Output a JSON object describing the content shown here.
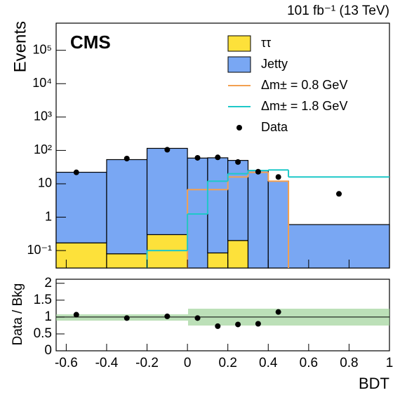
{
  "chart_data": [
    {
      "type": "histogram",
      "title": "CMS",
      "subtitle": "101 fb⁻¹ (13 TeV)",
      "ylabel": "Events",
      "log_y": true,
      "legend": "upper right",
      "bins": [
        -0.65,
        -0.4,
        -0.2,
        0,
        0.1,
        0.2,
        0.3,
        0.4,
        0.5,
        1.0
      ],
      "series": [
        {
          "name": "ττ",
          "color": "#fde13a",
          "style": "stack",
          "values": [
            0.17,
            0.08,
            0.3,
            0,
            0.085,
            0.2,
            0,
            0,
            0
          ]
        },
        {
          "name": "Jetty",
          "color": "#79a7f3",
          "style": "stack",
          "values": [
            22,
            53,
            115,
            59,
            60,
            50,
            25,
            12,
            0.6
          ]
        },
        {
          "name": "Δm± = 0.8 GeV",
          "color": "#f3a050",
          "style": "step",
          "values": [
            null,
            null,
            null,
            6.7,
            6.7,
            16,
            22,
            12,
            null
          ]
        },
        {
          "name": "Δm± = 1.8 GeV",
          "color": "#1ec8c8",
          "style": "step",
          "values": [
            null,
            null,
            0.1,
            1.25,
            12,
            20,
            25,
            26,
            16
          ]
        }
      ],
      "data": {
        "name": "Data",
        "color": "#000000",
        "x": [
          -0.55,
          -0.3,
          -0.1,
          0.05,
          0.15,
          0.25,
          0.35,
          0.45,
          0.75
        ],
        "values": [
          22,
          57,
          105,
          60,
          62,
          45,
          23,
          16,
          5
        ]
      },
      "xlim": [
        -0.65,
        1.0
      ],
      "xticks": [
        -0.6,
        -0.4,
        -0.2,
        0,
        0.2,
        0.4,
        0.6,
        0.8,
        1
      ],
      "ylim": [
        0.03,
        650000
      ],
      "yticks": [
        {
          "value": 0.1,
          "label": "10⁻¹"
        },
        1,
        10,
        {
          "value": 100,
          "label": "10²"
        },
        {
          "value": 1000,
          "label": "10³"
        },
        {
          "value": 10000,
          "label": "10⁴"
        },
        {
          "value": 100000,
          "label": "10⁵"
        }
      ]
    },
    {
      "type": "scatter",
      "ylabel": "Data / Bkg",
      "xlabel": "BDT",
      "x": [
        -0.55,
        -0.3,
        -0.1,
        0.05,
        0.15,
        0.25,
        0.35,
        0.45
      ],
      "values": [
        1.07,
        0.97,
        1.02,
        0.97,
        0.73,
        0.78,
        0.8,
        1.15
      ],
      "color": "#000000",
      "xlim": [
        -0.65,
        1.0
      ],
      "xticks": [
        -0.6,
        -0.4,
        -0.2,
        0,
        0.2,
        0.4,
        0.6,
        0.8,
        1
      ],
      "ylim": [
        0,
        2.12
      ],
      "yticks": [
        0,
        0.5,
        1,
        1.5,
        2
      ]
    }
  ]
}
